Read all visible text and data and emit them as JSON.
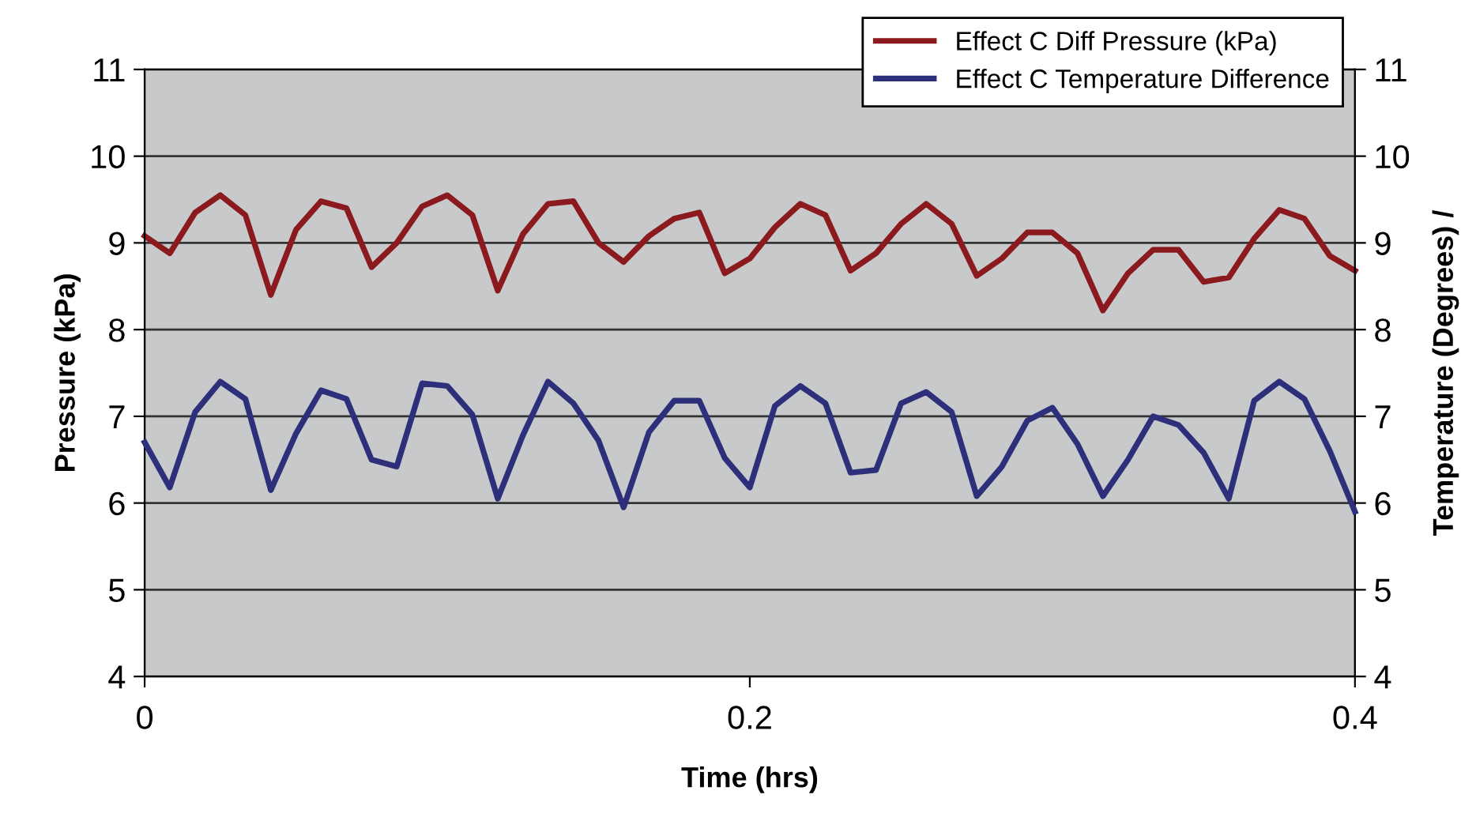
{
  "chart_data": {
    "type": "line",
    "xlabel": "Time (hrs)",
    "ylabel": "Pressure (kPa)",
    "y2label": "Temperature (Degrees) /",
    "x": [
      0,
      0.0083,
      0.0167,
      0.025,
      0.0333,
      0.0417,
      0.05,
      0.0583,
      0.0667,
      0.075,
      0.0833,
      0.0917,
      0.1,
      0.1083,
      0.1167,
      0.125,
      0.1333,
      0.1417,
      0.15,
      0.1583,
      0.1667,
      0.175,
      0.1833,
      0.1917,
      0.2,
      0.2083,
      0.2167,
      0.225,
      0.2333,
      0.2417,
      0.25,
      0.2583,
      0.2667,
      0.275,
      0.2833,
      0.2917,
      0.3,
      0.3083,
      0.3167,
      0.325,
      0.3333,
      0.3417,
      0.35,
      0.3583,
      0.3667,
      0.375,
      0.3833,
      0.3917,
      0.4
    ],
    "series": [
      {
        "name": "Effect C Diff Pressure (kPa)",
        "color": "#8b1a1f",
        "values": [
          9.08,
          8.88,
          9.35,
          9.55,
          9.32,
          8.4,
          9.15,
          9.48,
          9.4,
          8.72,
          9.0,
          9.42,
          9.55,
          9.32,
          8.45,
          9.1,
          9.45,
          9.48,
          9.0,
          8.78,
          9.08,
          9.28,
          9.35,
          8.65,
          8.82,
          9.18,
          9.45,
          9.32,
          8.68,
          8.88,
          9.22,
          9.45,
          9.22,
          8.62,
          8.82,
          9.12,
          9.12,
          8.88,
          8.22,
          8.65,
          8.92,
          8.92,
          8.55,
          8.6,
          9.05,
          9.38,
          9.28,
          8.85,
          8.68
        ]
      },
      {
        "name": "Effect C Temperature Difference",
        "color": "#2e2f7a",
        "axis": "y2",
        "values": [
          6.7,
          6.18,
          7.05,
          7.4,
          7.2,
          6.15,
          6.8,
          7.3,
          7.2,
          6.5,
          6.42,
          7.38,
          7.35,
          7.02,
          6.05,
          6.78,
          7.4,
          7.15,
          6.72,
          5.95,
          6.82,
          7.18,
          7.18,
          6.52,
          6.18,
          7.12,
          7.35,
          7.15,
          6.35,
          6.38,
          7.15,
          7.28,
          7.05,
          6.08,
          6.42,
          6.95,
          7.1,
          6.68,
          6.08,
          6.5,
          7.0,
          6.9,
          6.58,
          6.05,
          7.18,
          7.4,
          7.2,
          6.6,
          5.9
        ]
      }
    ],
    "xlim": [
      0,
      0.4
    ],
    "xticks": [
      0,
      0.2,
      0.4
    ],
    "ylim": [
      4,
      11
    ],
    "yticks": [
      4,
      5,
      6,
      7,
      8,
      9,
      10,
      11
    ],
    "y2lim": [
      4,
      11
    ],
    "y2ticks": [
      4,
      5,
      6,
      7,
      8,
      9,
      10,
      11
    ],
    "grid": "y",
    "legend": "top right",
    "marker": "none",
    "line_style": "solid"
  }
}
